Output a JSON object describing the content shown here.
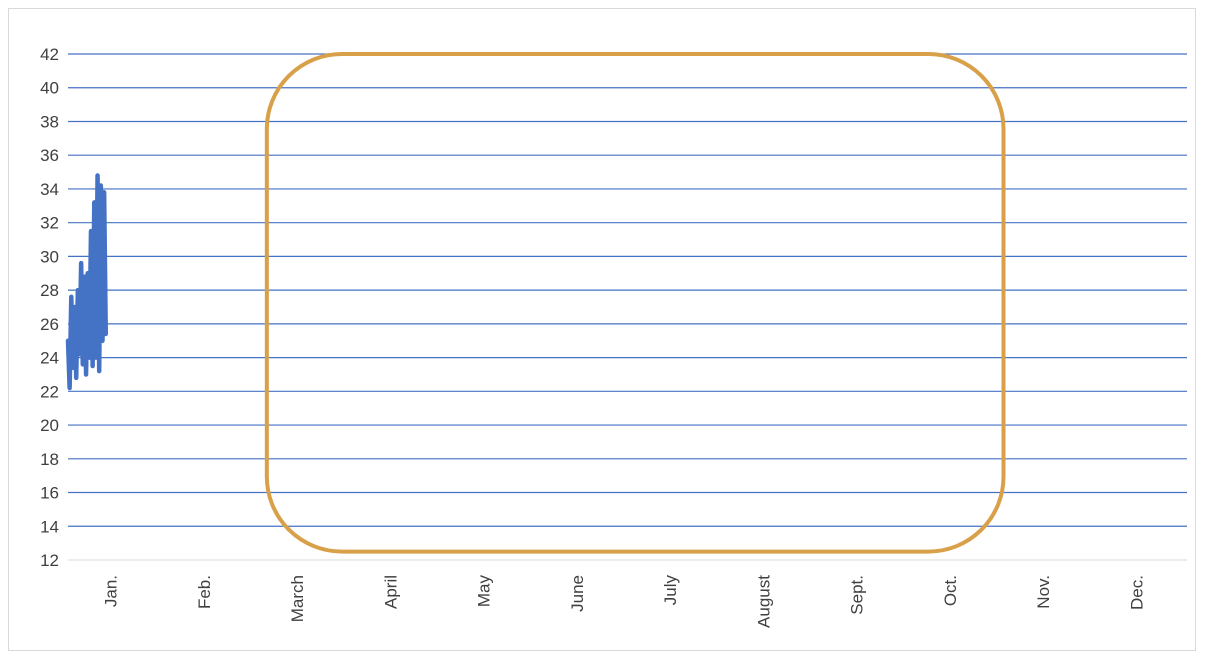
{
  "chart_data": {
    "type": "line",
    "title": "",
    "xlabel": "",
    "ylabel": "",
    "ylim": [
      12,
      42
    ],
    "y_ticks": [
      12,
      14,
      16,
      18,
      20,
      22,
      24,
      26,
      28,
      30,
      32,
      34,
      36,
      38,
      40,
      42
    ],
    "x_categories": [
      "Jan.",
      "Feb.",
      "March",
      "April",
      "May",
      "June",
      "July",
      "August",
      "Sept.",
      "Oct.",
      "Nov.",
      "Dec."
    ],
    "grid": true,
    "legend": "none",
    "series": [
      {
        "color": "#4472c4",
        "x": [
          0.0,
          0.02,
          0.04,
          0.06,
          0.08,
          0.1,
          0.12,
          0.14,
          0.16,
          0.18,
          0.2,
          0.22,
          0.24,
          0.26,
          0.28,
          0.3,
          0.32,
          0.34,
          0.36,
          0.38,
          0.4,
          0.42,
          0.44,
          0.46
        ],
        "values": [
          25.0,
          22.2,
          27.6,
          23.4,
          27.0,
          22.8,
          28.0,
          24.2,
          29.6,
          23.6,
          28.8,
          23.0,
          29.0,
          24.0,
          31.5,
          23.5,
          33.2,
          24.0,
          34.8,
          23.2,
          34.2,
          25.0,
          33.8,
          25.4
        ]
      }
    ],
    "annotations": [
      {
        "shape": "rounded-rectangle",
        "color": "#d9a04a",
        "x_from": 2.1,
        "x_to": 10.0,
        "y_from": 12.5,
        "y_to": 42
      }
    ]
  }
}
